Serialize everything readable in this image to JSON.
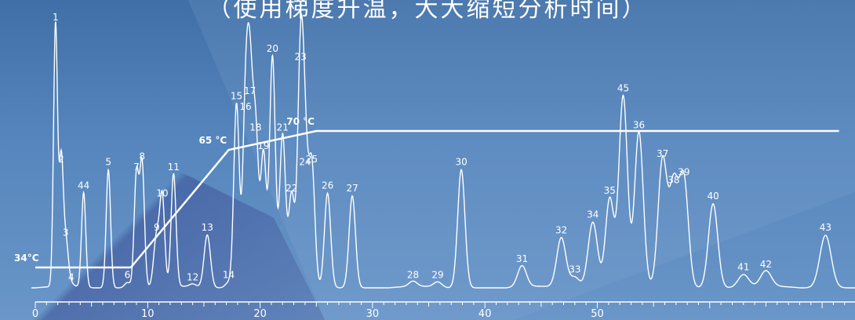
{
  "title": "（使用梯度升温，大大缩短分析时间）",
  "colors": {
    "trace": "#ffffff",
    "axis": "#ffffff"
  },
  "chart_data": {
    "type": "line",
    "x_ticks": [
      0,
      10,
      20,
      30,
      40,
      50
    ],
    "xlim": [
      0,
      71.5
    ],
    "temperature_program": {
      "points": [
        [
          0,
          34
        ],
        [
          8.5,
          34
        ],
        [
          17.2,
          65
        ],
        [
          25,
          70
        ],
        [
          71.5,
          70
        ]
      ],
      "labels": [
        {
          "text": "34°C",
          "at": [
            0,
            34
          ]
        },
        {
          "text": "65 °C",
          "at": [
            17.2,
            65
          ]
        },
        {
          "text": "70 °C",
          "at": [
            25,
            70
          ]
        }
      ]
    },
    "peaks": [
      {
        "id": "1",
        "rt": 1.8,
        "h": 100
      },
      {
        "id": "2",
        "rt": 2.3,
        "h": 46
      },
      {
        "id": "3",
        "rt": 2.7,
        "h": 18
      },
      {
        "id": "4",
        "rt": 3.2,
        "h": 1
      },
      {
        "id": "44",
        "rt": 4.3,
        "h": 36
      },
      {
        "id": "5",
        "rt": 6.5,
        "h": 45
      },
      {
        "id": "6",
        "rt": 8.2,
        "h": 2
      },
      {
        "id": "7",
        "rt": 9.0,
        "h": 43
      },
      {
        "id": "8",
        "rt": 9.5,
        "h": 47
      },
      {
        "id": "9",
        "rt": 10.8,
        "h": 20
      },
      {
        "id": "10",
        "rt": 11.3,
        "h": 33
      },
      {
        "id": "11",
        "rt": 12.3,
        "h": 43
      },
      {
        "id": "12",
        "rt": 14.0,
        "h": 1
      },
      {
        "id": "13",
        "rt": 15.3,
        "h": 20
      },
      {
        "id": "14",
        "rt": 17.2,
        "h": 2
      },
      {
        "id": "15",
        "rt": 17.9,
        "h": 70
      },
      {
        "id": "16",
        "rt": 18.7,
        "h": 66
      },
      {
        "id": "17",
        "rt": 19.1,
        "h": 72
      },
      {
        "id": "18",
        "rt": 19.6,
        "h": 58
      },
      {
        "id": "19",
        "rt": 20.3,
        "h": 51
      },
      {
        "id": "20",
        "rt": 21.1,
        "h": 88
      },
      {
        "id": "21",
        "rt": 22.0,
        "h": 58
      },
      {
        "id": "22",
        "rt": 22.8,
        "h": 35
      },
      {
        "id": "23",
        "rt": 23.6,
        "h": 85
      },
      {
        "id": "24",
        "rt": 24.0,
        "h": 45
      },
      {
        "id": "25",
        "rt": 24.6,
        "h": 46
      },
      {
        "id": "26",
        "rt": 26.0,
        "h": 36
      },
      {
        "id": "27",
        "rt": 28.2,
        "h": 35
      },
      {
        "id": "28",
        "rt": 33.6,
        "h": 2
      },
      {
        "id": "29",
        "rt": 35.8,
        "h": 2
      },
      {
        "id": "30",
        "rt": 37.9,
        "h": 45
      },
      {
        "id": "31",
        "rt": 43.3,
        "h": 8
      },
      {
        "id": "32",
        "rt": 46.8,
        "h": 19
      },
      {
        "id": "33",
        "rt": 48.0,
        "h": 4
      },
      {
        "id": "34",
        "rt": 49.6,
        "h": 25
      },
      {
        "id": "35",
        "rt": 51.1,
        "h": 34
      },
      {
        "id": "45",
        "rt": 52.3,
        "h": 73
      },
      {
        "id": "36",
        "rt": 53.7,
        "h": 59
      },
      {
        "id": "37",
        "rt": 55.8,
        "h": 48
      },
      {
        "id": "38",
        "rt": 56.8,
        "h": 38
      },
      {
        "id": "39",
        "rt": 57.7,
        "h": 41
      },
      {
        "id": "40",
        "rt": 60.3,
        "h": 32
      },
      {
        "id": "41",
        "rt": 63.0,
        "h": 5
      },
      {
        "id": "42",
        "rt": 65.0,
        "h": 6
      },
      {
        "id": "43",
        "rt": 70.3,
        "h": 20
      }
    ]
  }
}
